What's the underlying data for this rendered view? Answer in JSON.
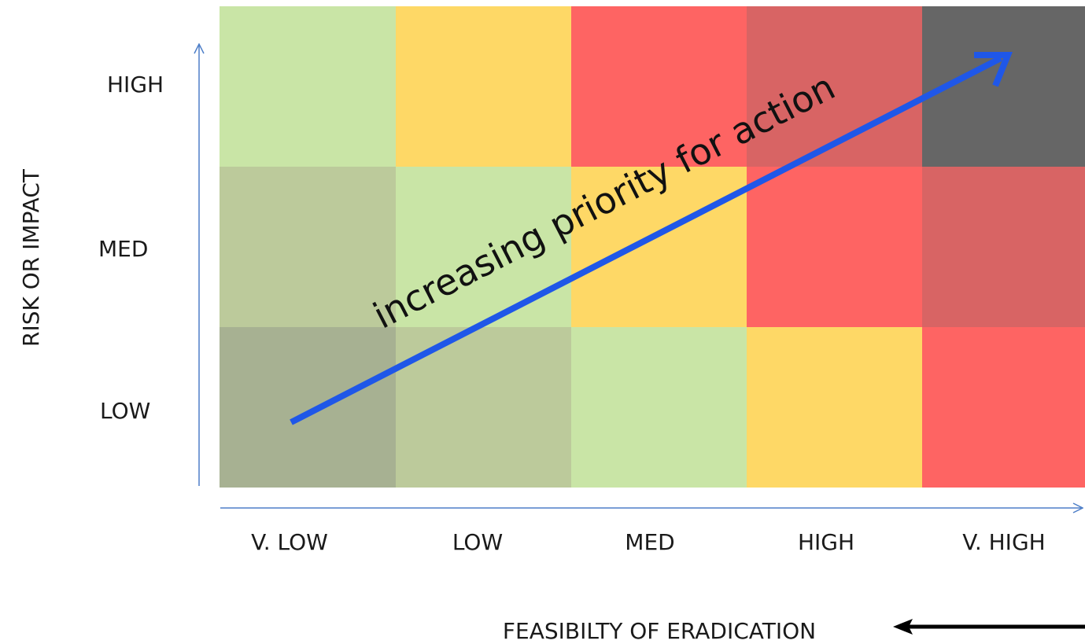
{
  "y_axis": {
    "title": "RISK OR IMPACT",
    "levels": [
      "LOW",
      "MED",
      "HIGH"
    ]
  },
  "x_axis": {
    "title": "FEASIBILTY OF ERADICATION",
    "levels": [
      "V. LOW",
      "LOW",
      "MED",
      "HIGH",
      "V. HIGH"
    ]
  },
  "diagonal_arrow": {
    "label": "increasing priority for action",
    "color": "#1f57e8"
  },
  "cell_colors": {
    "HIGH": [
      "#c9e5a6",
      "#fed866",
      "#fe6463",
      "#d86464",
      "#666666"
    ],
    "MED": [
      "#bcca9b",
      "#c9e5a6",
      "#fed866",
      "#fe6463",
      "#d86464"
    ],
    "LOW": [
      "#a7b192",
      "#bcca9b",
      "#c9e5a6",
      "#fed866",
      "#fe6463"
    ]
  },
  "axis_color": "#4e7fc8"
}
